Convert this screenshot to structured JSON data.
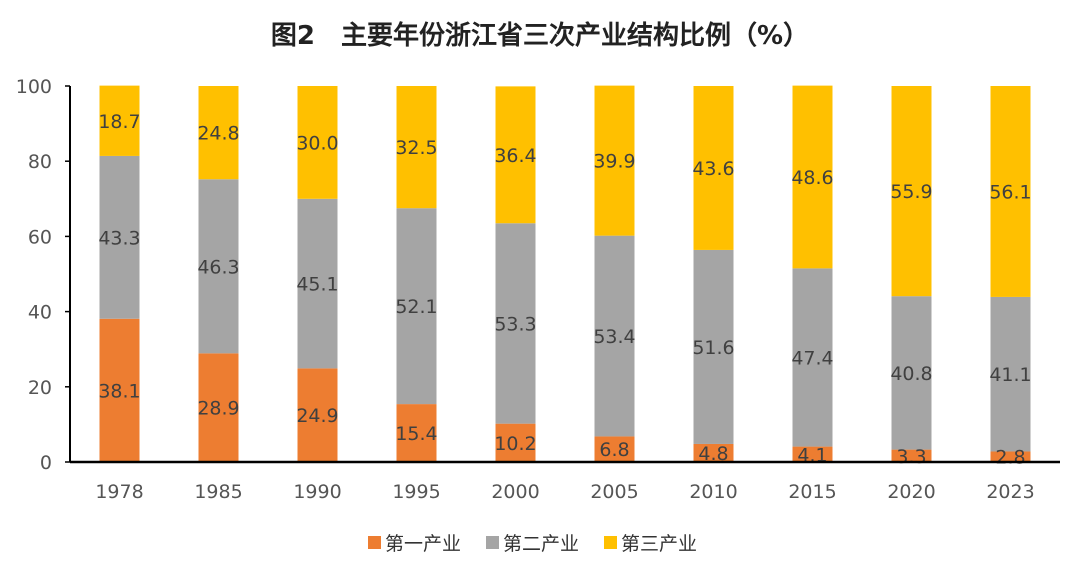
{
  "chart_data": {
    "type": "bar",
    "stacked": true,
    "title": "图2　主要年份浙江省三次产业结构比例（%）",
    "xlabel": "",
    "ylabel": "",
    "ylim": [
      0,
      100
    ],
    "yticks": [
      0,
      20,
      40,
      60,
      80,
      100
    ],
    "grid": false,
    "legend_position": "bottom",
    "categories": [
      "1978",
      "1985",
      "1990",
      "1995",
      "2000",
      "2005",
      "2010",
      "2015",
      "2020",
      "2023"
    ],
    "series": [
      {
        "name": "第一产业",
        "color": "#ED7D31",
        "values": [
          38.1,
          28.9,
          24.9,
          15.4,
          10.2,
          6.8,
          4.8,
          4.1,
          3.3,
          2.8
        ]
      },
      {
        "name": "第二产业",
        "color": "#A5A5A5",
        "values": [
          43.3,
          46.3,
          45.1,
          52.1,
          53.3,
          53.4,
          51.6,
          47.4,
          40.8,
          41.1
        ]
      },
      {
        "name": "第三产业",
        "color": "#FFC000",
        "values": [
          18.7,
          24.8,
          30.0,
          32.5,
          36.4,
          39.9,
          43.6,
          48.6,
          55.9,
          56.1
        ]
      }
    ]
  }
}
